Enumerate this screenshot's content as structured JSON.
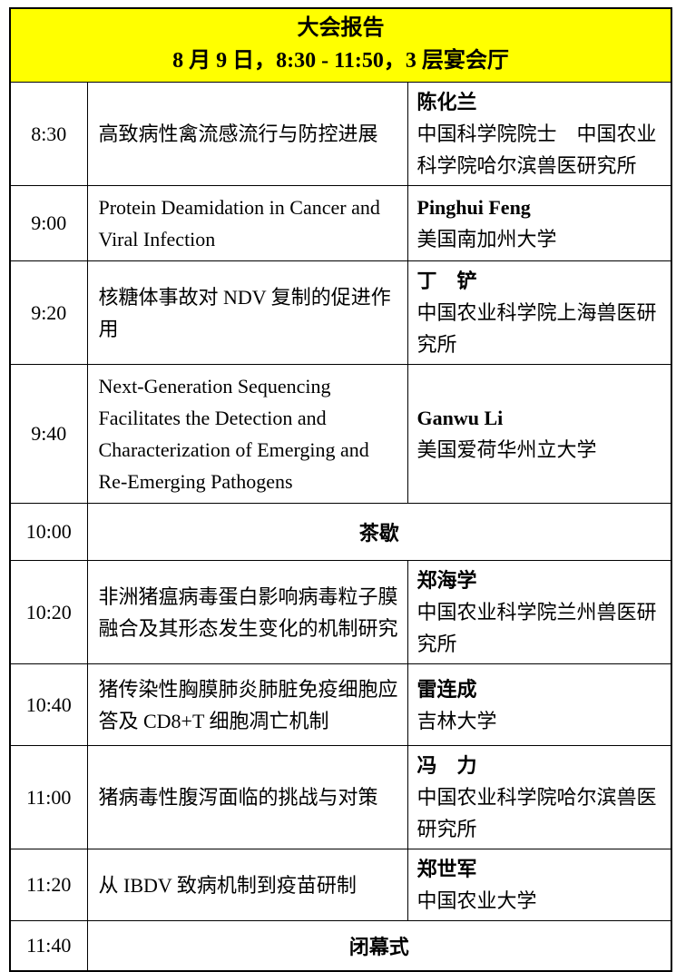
{
  "header": {
    "title": "大会报告",
    "subtitle": "8 月 9 日，8:30 - 11:50，3 层宴会厅"
  },
  "colors": {
    "header_bg": "#FFFF00",
    "border": "#000000",
    "text": "#000000"
  },
  "rows": [
    {
      "time": "8:30",
      "topic": "高致病性禽流感流行与防控进展",
      "speaker": "陈化兰",
      "affiliation": "中国科学院院士　中国农业科学院哈尔滨兽医研究所"
    },
    {
      "time": "9:00",
      "topic": "Protein Deamidation in Cancer and Viral Infection",
      "speaker": "Pinghui Feng",
      "affiliation": "美国南加州大学"
    },
    {
      "time": "9:20",
      "topic": "核糖体事故对 NDV 复制的促进作用",
      "speaker": "丁　铲",
      "affiliation": "中国农业科学院上海兽医研究所"
    },
    {
      "time": "9:40",
      "topic": "Next-Generation Sequencing Facilitates the Detection and Characterization of Emerging and Re-Emerging Pathogens",
      "speaker": "Ganwu Li",
      "affiliation": "美国爱荷华州立大学"
    },
    {
      "time": "10:00",
      "event": "茶歇"
    },
    {
      "time": "10:20",
      "topic": "非洲猪瘟病毒蛋白影响病毒粒子膜融合及其形态发生变化的机制研究",
      "speaker": "郑海学",
      "affiliation": "中国农业科学院兰州兽医研究所"
    },
    {
      "time": "10:40",
      "topic": "猪传染性胸膜肺炎肺脏免疫细胞应答及 CD8+T 细胞凋亡机制",
      "speaker": "雷连成",
      "affiliation": "吉林大学"
    },
    {
      "time": "11:00",
      "topic": "猪病毒性腹泻面临的挑战与对策",
      "speaker": "冯　力",
      "affiliation": "中国农业科学院哈尔滨兽医研究所"
    },
    {
      "time": "11:20",
      "topic": "从 IBDV 致病机制到疫苗研制",
      "speaker": "郑世军",
      "affiliation": "中国农业大学"
    },
    {
      "time": "11:40",
      "event": "闭幕式"
    }
  ]
}
